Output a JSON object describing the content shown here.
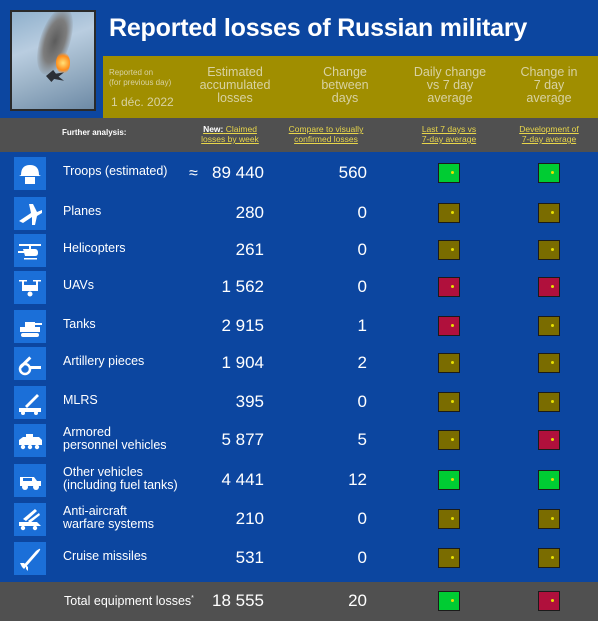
{
  "colors": {
    "background": "#0c46a0",
    "band": "#a08e00",
    "analysis_bar": "#505050",
    "green": "#00cc33",
    "olive": "#7a6c00",
    "crimson": "#b0103c",
    "dot": "#e8e000"
  },
  "header": {
    "title": "Reported losses of Russian military",
    "reported_on_line1": "Reported on",
    "reported_on_line2": "(for previous day)",
    "date": "1 déc. 2022",
    "col_estimated": [
      "Estimated",
      "accumulated",
      "losses"
    ],
    "col_change": [
      "Change",
      "between",
      "days"
    ],
    "col_daily": [
      "Daily change",
      "vs 7 day",
      "average"
    ],
    "col_7day": [
      "Change in",
      "7 day",
      "average"
    ]
  },
  "analysis": {
    "label": "Further analysis:",
    "new_prefix": "New:",
    "claimed_line1": "Claimed",
    "claimed_line2": "losses by week",
    "compare_line1": "Compare to visually",
    "compare_line2": "confirmed losses",
    "last7_line1": "Last 7 days vs",
    "last7_line2": "7-day average",
    "dev_line1": "Development of",
    "dev_line2": "7-day average"
  },
  "rows": [
    {
      "icon": "soldier-helmet-icon",
      "label1": "Troops (estimated)",
      "label2": "",
      "approx": "≈",
      "value": "89 440",
      "change": "560",
      "daily": "#00cc33",
      "seven": "#00cc33"
    },
    {
      "icon": "jet-plane-icon",
      "label1": "Planes",
      "label2": "",
      "approx": "",
      "value": "280",
      "change": "0",
      "daily": "#7a6c00",
      "seven": "#7a6c00"
    },
    {
      "icon": "helicopter-icon",
      "label1": "Helicopters",
      "label2": "",
      "approx": "",
      "value": "261",
      "change": "0",
      "daily": "#7a6c00",
      "seven": "#7a6c00"
    },
    {
      "icon": "drone-icon",
      "label1": "UAVs",
      "label2": "",
      "approx": "",
      "value": "1 562",
      "change": "0",
      "daily": "#b0103c",
      "seven": "#b0103c"
    },
    {
      "icon": "tank-icon",
      "label1": "Tanks",
      "label2": "",
      "approx": "",
      "value": "2 915",
      "change": "1",
      "daily": "#b0103c",
      "seven": "#7a6c00"
    },
    {
      "icon": "artillery-icon",
      "label1": "Artillery pieces",
      "label2": "",
      "approx": "",
      "value": "1 904",
      "change": "2",
      "daily": "#7a6c00",
      "seven": "#7a6c00"
    },
    {
      "icon": "rocket-launcher-icon",
      "label1": "MLRS",
      "label2": "",
      "approx": "",
      "value": "395",
      "change": "0",
      "daily": "#7a6c00",
      "seven": "#7a6c00"
    },
    {
      "icon": "armored-vehicle-icon",
      "label1": "Armored",
      "label2": "personnel vehicles",
      "approx": "",
      "value": "5 877",
      "change": "5",
      "daily": "#7a6c00",
      "seven": "#b0103c"
    },
    {
      "icon": "jeep-icon",
      "label1": "Other vehicles",
      "label2": "(including fuel tanks)",
      "approx": "",
      "value": "4 441",
      "change": "12",
      "daily": "#00cc33",
      "seven": "#00cc33"
    },
    {
      "icon": "anti-aircraft-icon",
      "label1": "Anti-aircraft",
      "label2": "warfare systems",
      "approx": "",
      "value": "210",
      "change": "0",
      "daily": "#7a6c00",
      "seven": "#7a6c00"
    },
    {
      "icon": "cruise-missile-icon",
      "label1": "Cruise missiles",
      "label2": "",
      "approx": "",
      "value": "531",
      "change": "0",
      "daily": "#7a6c00",
      "seven": "#7a6c00"
    }
  ],
  "total": {
    "label": "Total equipment losses",
    "mark": "*",
    "value": "18 555",
    "change": "20",
    "daily": "#00cc33",
    "seven": "#b0103c"
  }
}
